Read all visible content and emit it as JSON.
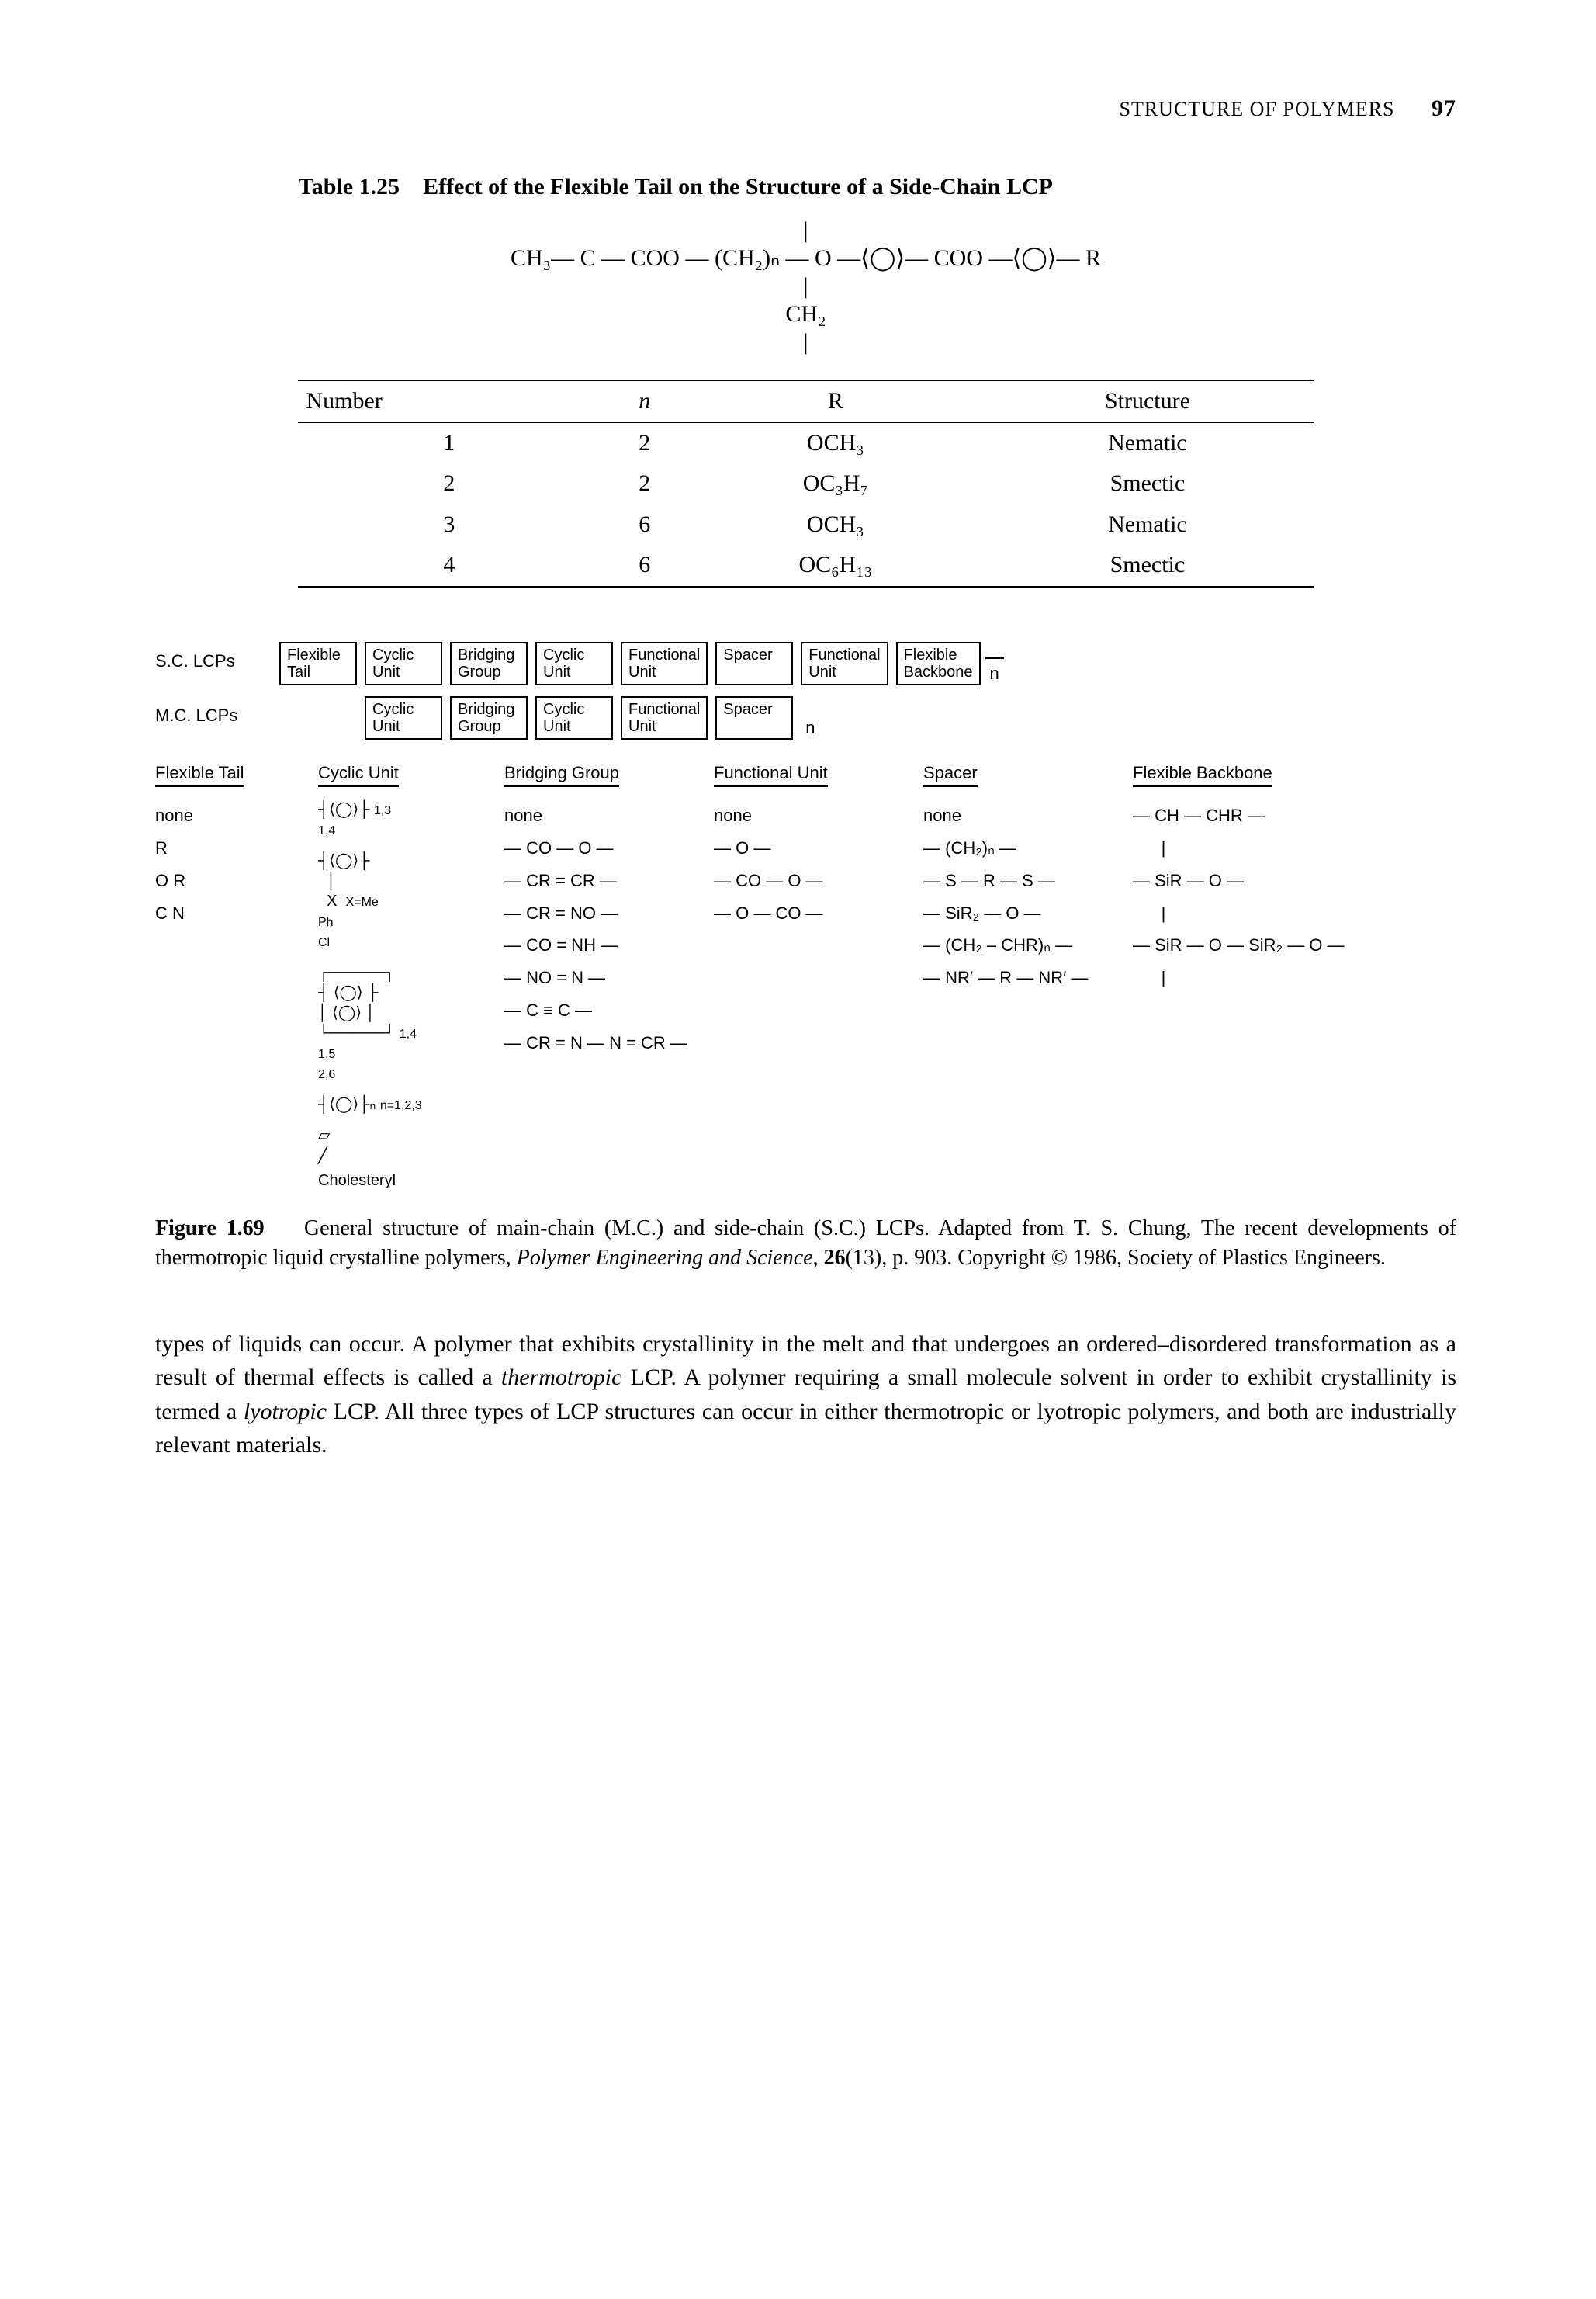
{
  "header": {
    "running_title": "STRUCTURE OF POLYMERS",
    "page_number": "97"
  },
  "table": {
    "label": "Table 1.25",
    "title": "Effect of the Flexible Tail on the Structure of a Side-Chain LCP",
    "chem_line1": "|",
    "chem_line2": "CH₃— C — COO — (CH₂)ₙ — O —⟨◯⟩— COO —⟨◯⟩— R",
    "chem_line3": "|",
    "chem_line4": "CH₂",
    "chem_line5": "|",
    "columns": [
      "Number",
      "n",
      "R",
      "Structure"
    ],
    "rows": [
      [
        "1",
        "2",
        "OCH₃",
        "Nematic"
      ],
      [
        "2",
        "2",
        "OC₃H₇",
        "Smectic"
      ],
      [
        "3",
        "6",
        "OCH₃",
        "Nematic"
      ],
      [
        "4",
        "6",
        "OC₆H₁₃",
        "Smectic"
      ]
    ]
  },
  "figure": {
    "sc_label": "S.C. LCPs",
    "mc_label": "M.C. LCPs",
    "sc_boxes": [
      "Flexible\nTail",
      "Cyclic\nUnit",
      "Bridging\nGroup",
      "Cyclic\nUnit",
      "Functional\nUnit",
      "Spacer",
      "Functional\nUnit",
      "Flexible\nBackbone"
    ],
    "mc_boxes": [
      "Cyclic\nUnit",
      "Bridging\nGroup",
      "Cyclic\nUnit",
      "Functional\nUnit",
      "Spacer"
    ],
    "n_label": "n",
    "col_heads": [
      "Flexible Tail",
      "Cyclic Unit",
      "Bridging Group",
      "Functional Unit",
      "Spacer",
      "Flexible Backbone"
    ],
    "flexible_tail": [
      "none",
      "R",
      "O R",
      "C N"
    ],
    "cyclic_unit_note1": "1,3\n1,4",
    "cyclic_unit_note2": "X=Me\nPh\nCl",
    "cyclic_unit_note3": "1,4\n1,5\n2,6",
    "cyclic_unit_note4": "n=1,2,3",
    "cyclic_unit_last": "Cholesteryl",
    "bridging_group": [
      "none",
      "— CO — O —",
      "— CR = CR —",
      "— CR = NO —",
      "— CO = NH —",
      "— NO = N —",
      "— C ≡ C —",
      "— CR = N — N = CR —"
    ],
    "functional_unit": [
      "none",
      "— O —",
      "— CO — O —",
      "— O — CO —"
    ],
    "spacer": [
      "none",
      "— (CH₂)ₙ —",
      "— S — R — S —",
      "— SiR₂ — O —",
      "— (CH₂ – CHR)ₙ —",
      "— NR′ — R — NR′ —"
    ],
    "flexible_backbone": [
      "— CH — CHR —\n      |",
      "— SiR — O —\n      |",
      "— SiR — O — SiR₂ — O —\n      |"
    ],
    "caption_label": "Figure 1.69",
    "caption_text_a": "General structure of main-chain (M.C.) and side-chain (S.C.) LCPs. Adapted from T. S. Chung, The recent developments of thermotropic liquid crystalline polymers, ",
    "caption_ital": "Polymer Engineering and Science",
    "caption_bold_vol": "26",
    "caption_text_b": "(13), p. 903. Copyright © 1986, Society of Plastics Engineers."
  },
  "paragraph": {
    "text_a": "types of liquids can occur. A polymer that exhibits crystallinity in the melt and that undergoes an ordered–disordered transformation as a result of thermal effects is called a ",
    "ital_a": "thermotropic",
    "text_b": " LCP. A polymer requiring a small molecule solvent in order to exhibit crystallinity is termed a ",
    "ital_b": "lyotropic",
    "text_c": " LCP. All three types of LCP structures can occur in either thermotropic or lyotropic polymers, and both are industrially relevant materials."
  }
}
